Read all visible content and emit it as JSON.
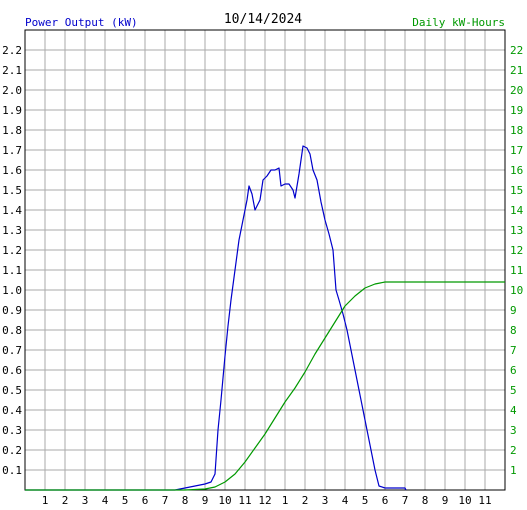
{
  "chart_data": {
    "type": "line",
    "title": "10/14/2024",
    "left_axis_label": "Power Output (kW)",
    "right_axis_label": "Daily kW-Hours",
    "x_ticks": [
      "1",
      "2",
      "3",
      "4",
      "5",
      "6",
      "7",
      "8",
      "9",
      "10",
      "11",
      "12",
      "1",
      "2",
      "3",
      "4",
      "5",
      "6",
      "7",
      "8",
      "9",
      "10",
      "11"
    ],
    "x_range_hours": [
      0,
      24
    ],
    "y_left_range": [
      0,
      2.3
    ],
    "y_left_ticks": [
      "0.1",
      "0.2",
      "0.3",
      "0.4",
      "0.5",
      "0.6",
      "0.7",
      "0.8",
      "0.9",
      "1.0",
      "1.1",
      "1.2",
      "1.3",
      "1.4",
      "1.5",
      "1.6",
      "1.7",
      "1.8",
      "1.9",
      "2.0",
      "2.1",
      "2.2"
    ],
    "y_right_range": [
      0,
      23
    ],
    "y_right_ticks": [
      "1",
      "2",
      "3",
      "4",
      "5",
      "6",
      "7",
      "8",
      "9",
      "10",
      "11",
      "12",
      "13",
      "14",
      "15",
      "16",
      "17",
      "18",
      "19",
      "20",
      "21",
      "22"
    ],
    "grid": true,
    "colors": {
      "power": "#0000cc",
      "energy": "#009900",
      "left_label": "#0000cc",
      "right_label": "#009900",
      "grid": "#aaaaaa"
    },
    "series": [
      {
        "axis": "left",
        "points": [
          [
            0,
            0
          ],
          [
            7.5,
            0
          ],
          [
            8.0,
            0.01
          ],
          [
            8.5,
            0.02
          ],
          [
            9.0,
            0.03
          ],
          [
            9.3,
            0.04
          ],
          [
            9.5,
            0.08
          ],
          [
            9.65,
            0.3
          ],
          [
            9.8,
            0.45
          ],
          [
            10.0,
            0.67
          ],
          [
            10.15,
            0.82
          ],
          [
            10.3,
            0.95
          ],
          [
            10.5,
            1.1
          ],
          [
            10.7,
            1.25
          ],
          [
            10.9,
            1.35
          ],
          [
            11.1,
            1.45
          ],
          [
            11.2,
            1.52
          ],
          [
            11.35,
            1.48
          ],
          [
            11.5,
            1.4
          ],
          [
            11.75,
            1.45
          ],
          [
            11.9,
            1.55
          ],
          [
            12.1,
            1.57
          ],
          [
            12.3,
            1.6
          ],
          [
            12.5,
            1.6
          ],
          [
            12.7,
            1.61
          ],
          [
            12.8,
            1.52
          ],
          [
            13.0,
            1.53
          ],
          [
            13.2,
            1.53
          ],
          [
            13.4,
            1.5
          ],
          [
            13.5,
            1.46
          ],
          [
            13.7,
            1.58
          ],
          [
            13.9,
            1.72
          ],
          [
            14.1,
            1.71
          ],
          [
            14.25,
            1.68
          ],
          [
            14.4,
            1.6
          ],
          [
            14.6,
            1.55
          ],
          [
            14.8,
            1.44
          ],
          [
            15.0,
            1.35
          ],
          [
            15.2,
            1.28
          ],
          [
            15.4,
            1.2
          ],
          [
            15.55,
            1.0
          ],
          [
            15.7,
            0.95
          ],
          [
            15.9,
            0.88
          ],
          [
            16.1,
            0.8
          ],
          [
            16.3,
            0.7
          ],
          [
            16.5,
            0.6
          ],
          [
            16.7,
            0.5
          ],
          [
            16.9,
            0.4
          ],
          [
            17.1,
            0.3
          ],
          [
            17.3,
            0.2
          ],
          [
            17.5,
            0.1
          ],
          [
            17.7,
            0.02
          ],
          [
            18.0,
            0.01
          ],
          [
            19.0,
            0.01
          ],
          [
            19.05,
            0
          ]
        ]
      },
      {
        "axis": "right",
        "points": [
          [
            0,
            0
          ],
          [
            8.0,
            0
          ],
          [
            9.0,
            0.05
          ],
          [
            9.5,
            0.15
          ],
          [
            10.0,
            0.4
          ],
          [
            10.5,
            0.8
          ],
          [
            11.0,
            1.4
          ],
          [
            11.5,
            2.1
          ],
          [
            12.0,
            2.8
          ],
          [
            12.5,
            3.6
          ],
          [
            13.0,
            4.4
          ],
          [
            13.5,
            5.1
          ],
          [
            14.0,
            5.9
          ],
          [
            14.5,
            6.8
          ],
          [
            15.0,
            7.6
          ],
          [
            15.5,
            8.4
          ],
          [
            16.0,
            9.2
          ],
          [
            16.5,
            9.7
          ],
          [
            17.0,
            10.1
          ],
          [
            17.5,
            10.3
          ],
          [
            18.0,
            10.4
          ],
          [
            20.0,
            10.4
          ],
          [
            24.0,
            10.4
          ]
        ]
      }
    ]
  }
}
